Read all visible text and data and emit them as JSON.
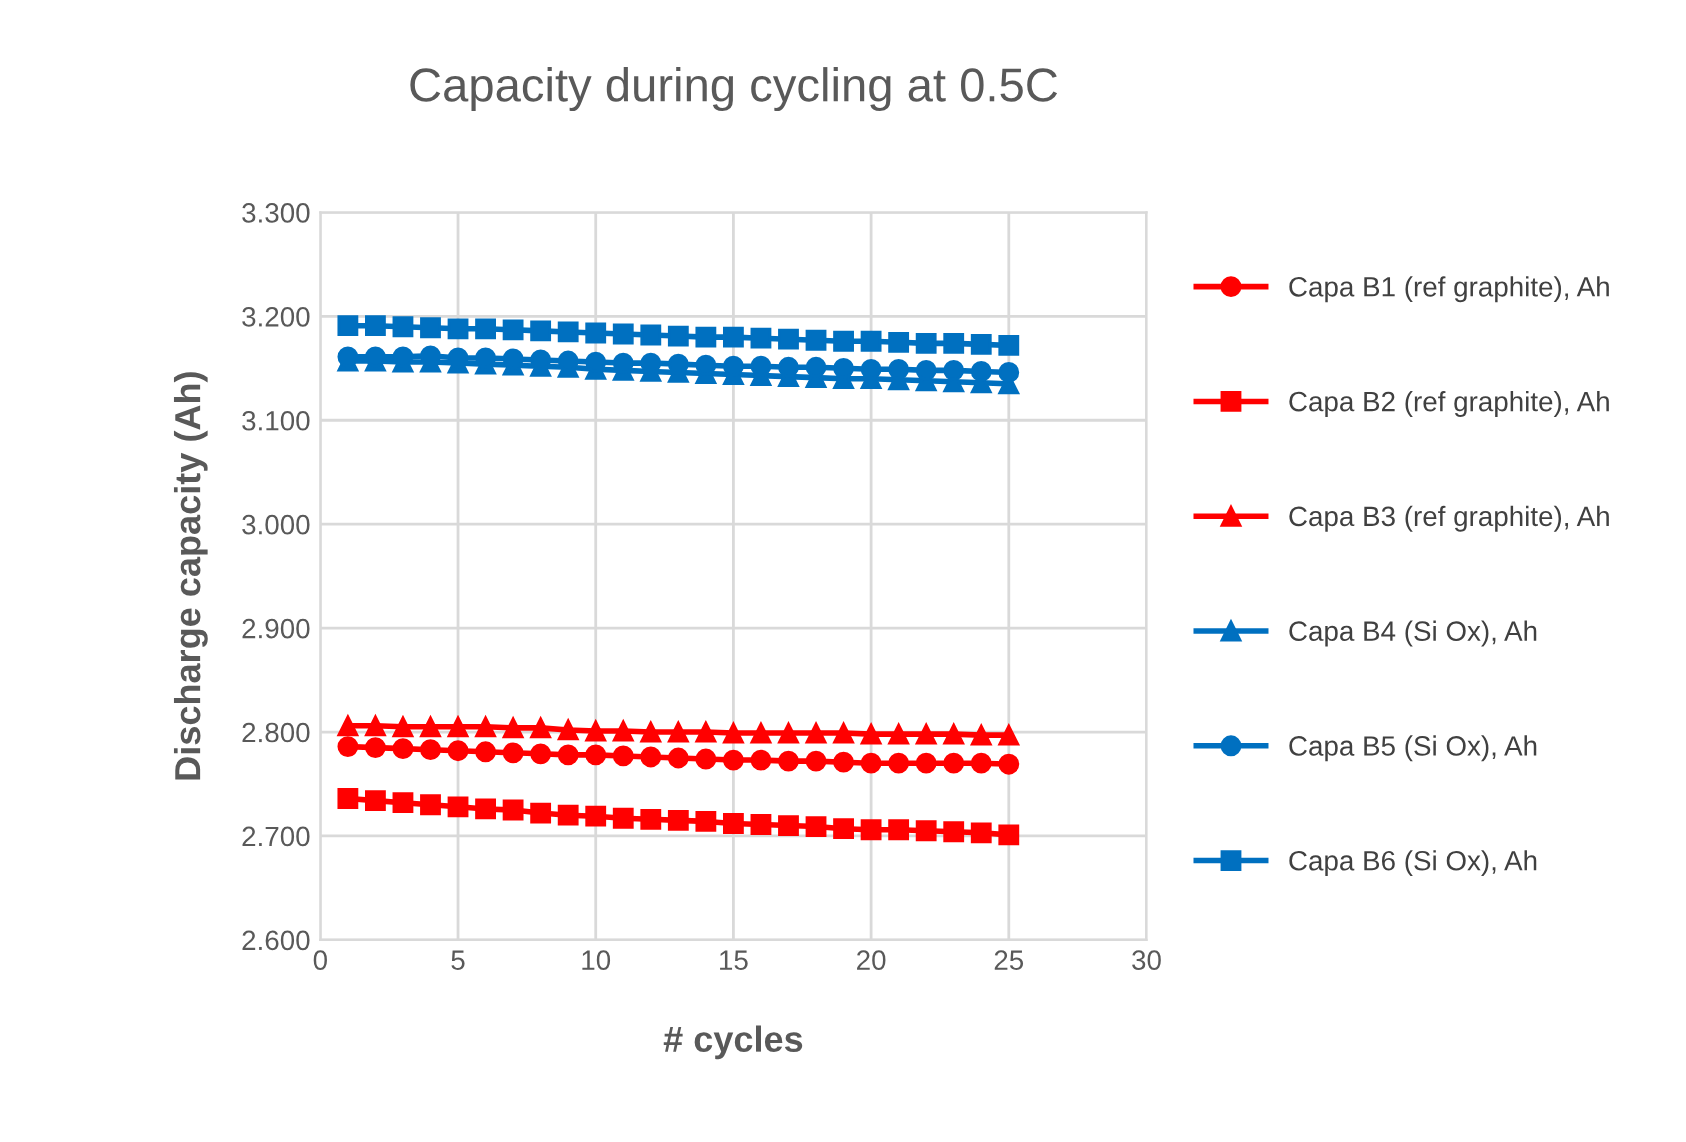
{
  "chart_data": {
    "type": "line",
    "title": "Capacity during cycling at 0.5C",
    "xlabel": "# cycles",
    "ylabel": "Discharge capacity (Ah)",
    "x": [
      1,
      2,
      3,
      4,
      5,
      6,
      7,
      8,
      9,
      10,
      11,
      12,
      13,
      14,
      15,
      16,
      17,
      18,
      19,
      20,
      21,
      22,
      23,
      24,
      25
    ],
    "xlim": [
      0,
      30
    ],
    "xticks": [
      0,
      5,
      10,
      15,
      20,
      25,
      30
    ],
    "ylim": [
      2.6,
      3.3
    ],
    "yticks": [
      {
        "value": 2.6,
        "label": "2.600"
      },
      {
        "value": 2.7,
        "label": "2.700"
      },
      {
        "value": 2.8,
        "label": "2.800"
      },
      {
        "value": 2.9,
        "label": "2.900"
      },
      {
        "value": 3.0,
        "label": "3.000"
      },
      {
        "value": 3.1,
        "label": "3.100"
      },
      {
        "value": 3.2,
        "label": "3.200"
      },
      {
        "value": 3.3,
        "label": "3.300"
      }
    ],
    "grid": true,
    "legend": "right",
    "line_style": "solid",
    "series": [
      {
        "name": "Capa B1 (ref graphite), Ah",
        "color": "#ff0000",
        "marker": "circle",
        "values": [
          2.786,
          2.785,
          2.784,
          2.783,
          2.782,
          2.781,
          2.78,
          2.779,
          2.778,
          2.778,
          2.777,
          2.776,
          2.775,
          2.774,
          2.773,
          2.773,
          2.772,
          2.772,
          2.771,
          2.77,
          2.77,
          2.77,
          2.77,
          2.77,
          2.769
        ]
      },
      {
        "name": "Capa B2 (ref graphite), Ah",
        "color": "#ff0000",
        "marker": "square",
        "values": [
          2.736,
          2.734,
          2.732,
          2.73,
          2.728,
          2.726,
          2.725,
          2.722,
          2.72,
          2.719,
          2.717,
          2.716,
          2.715,
          2.714,
          2.712,
          2.711,
          2.71,
          2.709,
          2.707,
          2.706,
          2.706,
          2.705,
          2.704,
          2.703,
          2.701
        ]
      },
      {
        "name": "Capa B3 (ref graphite), Ah",
        "color": "#ff0000",
        "marker": "triangle",
        "values": [
          2.806,
          2.806,
          2.805,
          2.805,
          2.805,
          2.805,
          2.804,
          2.804,
          2.802,
          2.801,
          2.801,
          2.8,
          2.8,
          2.8,
          2.799,
          2.799,
          2.799,
          2.799,
          2.799,
          2.798,
          2.798,
          2.798,
          2.798,
          2.797,
          2.797
        ]
      },
      {
        "name": "Capa B4 (Si Ox), Ah",
        "color": "#0070c0",
        "marker": "triangle",
        "values": [
          3.157,
          3.157,
          3.156,
          3.156,
          3.155,
          3.154,
          3.153,
          3.152,
          3.151,
          3.149,
          3.148,
          3.147,
          3.146,
          3.145,
          3.144,
          3.143,
          3.142,
          3.141,
          3.14,
          3.14,
          3.139,
          3.138,
          3.137,
          3.136,
          3.135
        ]
      },
      {
        "name": "Capa B5 (Si Ox), Ah",
        "color": "#0070c0",
        "marker": "circle",
        "values": [
          3.161,
          3.161,
          3.161,
          3.162,
          3.16,
          3.16,
          3.159,
          3.158,
          3.157,
          3.156,
          3.155,
          3.155,
          3.154,
          3.153,
          3.152,
          3.152,
          3.151,
          3.151,
          3.15,
          3.149,
          3.149,
          3.148,
          3.148,
          3.147,
          3.146
        ]
      },
      {
        "name": "Capa B6 (Si Ox), Ah",
        "color": "#0070c0",
        "marker": "square",
        "values": [
          3.191,
          3.191,
          3.19,
          3.189,
          3.188,
          3.188,
          3.187,
          3.186,
          3.185,
          3.184,
          3.183,
          3.182,
          3.181,
          3.18,
          3.18,
          3.179,
          3.178,
          3.177,
          3.176,
          3.176,
          3.175,
          3.174,
          3.174,
          3.173,
          3.172
        ]
      }
    ]
  }
}
